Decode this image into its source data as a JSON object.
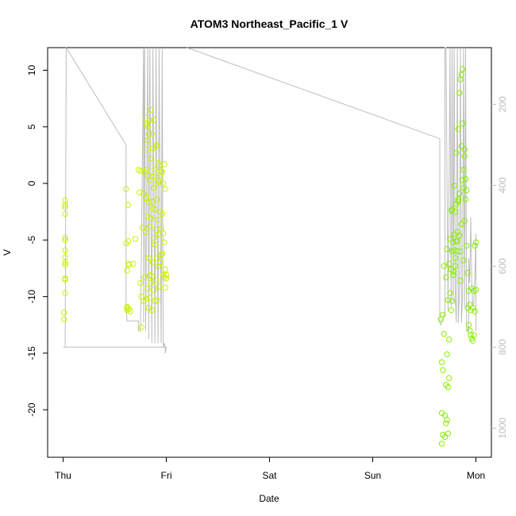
{
  "chart_data": {
    "type": "scatter",
    "title": "ATOM3 Northeast_Pacific_1 V",
    "xlabel": "Date",
    "ylabel": "V",
    "x_ticks": [
      "Thu",
      "Fri",
      "Sat",
      "Sun",
      "Mon"
    ],
    "y_ticks": [
      -20,
      -15,
      -10,
      -5,
      0,
      5,
      10
    ],
    "y_lim": [
      -24.2,
      12
    ],
    "right_axis_ticks": [
      200,
      400,
      600,
      800,
      1000
    ],
    "right_axis_lim": [
      60,
      1072
    ],
    "x_lim_days": [
      -0.15,
      4.15
    ],
    "grid": false,
    "colors": {
      "points_early": "#ccf000",
      "points_late": "#88ee00",
      "depth_line": "#bdbdbd",
      "axis": "#000000",
      "right_axis": "#bdbdbd"
    },
    "series": [
      {
        "type": "scatter",
        "x_days": [
          0.01,
          0.01,
          0.02,
          0.02,
          0.02,
          0.02,
          0.02,
          0.02,
          0.02,
          0.02,
          0.02,
          0.02,
          0.02,
          0.02,
          0.02,
          0.61,
          0.61,
          0.62,
          0.62,
          0.62,
          0.62,
          0.63,
          0.63,
          0.63,
          0.64,
          0.64,
          0.65,
          0.68,
          0.7,
          0.73,
          0.74,
          0.75,
          0.75,
          0.76,
          0.76,
          0.77,
          0.78,
          0.78,
          0.79,
          0.79,
          0.8,
          0.8,
          0.8,
          0.8,
          0.81,
          0.81,
          0.81,
          0.81,
          0.82,
          0.82,
          0.82,
          0.82,
          0.82,
          0.83,
          0.83,
          0.83,
          0.83,
          0.84,
          0.84,
          0.84,
          0.84,
          0.84,
          0.85,
          0.85,
          0.85,
          0.85,
          0.86,
          0.86,
          0.86,
          0.86,
          0.87,
          0.87,
          0.87,
          0.87,
          0.88,
          0.88,
          0.88,
          0.88,
          0.89,
          0.89,
          0.89,
          0.89,
          0.9,
          0.9,
          0.9,
          0.9,
          0.91,
          0.91,
          0.91,
          0.91,
          0.92,
          0.92,
          0.92,
          0.92,
          0.93,
          0.93,
          0.93,
          0.94,
          0.94,
          0.94,
          0.95,
          0.95,
          0.95,
          0.96,
          0.96,
          0.96,
          0.97,
          0.97,
          0.97,
          0.98,
          0.98,
          0.98,
          0.99,
          0.99,
          0.99,
          1.0,
          1.0
        ],
        "y": [
          -12.0,
          -11.4,
          -9.7,
          -8.5,
          -8.4,
          -7.2,
          -7.0,
          -6.5,
          -5.9,
          -5.0,
          -4.8,
          -2.7,
          -2.1,
          -1.9,
          -1.5,
          -0.5,
          -5.3,
          -7.7,
          -11.0,
          -11.2,
          -10.9,
          -7.1,
          -5.1,
          -1.9,
          -7.2,
          -11.1,
          -11.3,
          -7.1,
          -4.9,
          1.2,
          -0.8,
          1.1,
          -8.8,
          -10.0,
          -12.7,
          -3.9,
          -0.9,
          -10.4,
          1.0,
          -8.3,
          -4.3,
          -1.3,
          3.0,
          5.8,
          -10.2,
          -1.2,
          1.2,
          5.2,
          -9.3,
          -2.9,
          0.7,
          3.8,
          5.0,
          -11.0,
          -6.6,
          -1.7,
          4.4,
          -10.1,
          -8.1,
          -3.8,
          0.3,
          5.6,
          -8.8,
          -3.1,
          2.2,
          6.5,
          -11.2,
          -8.2,
          -1.6,
          4.4,
          -7.0,
          -2.2,
          0.6,
          3.1,
          -9.4,
          -4.8,
          -0.4,
          5.6,
          -10.4,
          -5.4,
          -2.3,
          1.2,
          -8.5,
          -4.1,
          0.0,
          3.3,
          -10.3,
          -6.6,
          -1.4,
          3.4,
          -7.3,
          -3.2,
          0.2,
          1.8,
          -9.1,
          -4.5,
          1.6,
          -7.0,
          -2.5,
          0.7,
          -6.3,
          -4.0,
          1.1,
          -6.2,
          -2.7,
          1.0,
          -8.1,
          -4.4,
          0.0,
          -8.3,
          -5.2,
          1.7,
          -9.2,
          -7.6,
          -0.5,
          -8.4,
          -8.1
        ]
      },
      {
        "type": "scatter",
        "x_days": [
          3.66,
          3.67,
          3.67,
          3.67,
          3.68,
          3.68,
          3.68,
          3.69,
          3.69,
          3.7,
          3.7,
          3.71,
          3.71,
          3.71,
          3.72,
          3.72,
          3.72,
          3.73,
          3.73,
          3.73,
          3.74,
          3.74,
          3.74,
          3.75,
          3.75,
          3.76,
          3.76,
          3.76,
          3.77,
          3.77,
          3.77,
          3.78,
          3.78,
          3.78,
          3.79,
          3.79,
          3.79,
          3.8,
          3.8,
          3.8,
          3.81,
          3.81,
          3.81,
          3.82,
          3.82,
          3.82,
          3.83,
          3.83,
          3.83,
          3.84,
          3.84,
          3.84,
          3.85,
          3.85,
          3.85,
          3.86,
          3.86,
          3.86,
          3.87,
          3.87,
          3.87,
          3.88,
          3.88,
          3.88,
          3.89,
          3.89,
          3.89,
          3.9,
          3.9,
          3.91,
          3.91,
          3.92,
          3.92,
          3.93,
          3.93,
          3.94,
          3.94,
          3.95,
          3.95,
          3.96,
          3.96,
          3.97,
          3.97,
          3.98,
          3.98,
          3.99,
          3.99,
          4.0,
          4.0
        ],
        "y": [
          -12.0,
          -15.8,
          -20.3,
          -23.0,
          -11.6,
          -16.5,
          -22.2,
          -7.3,
          -13.3,
          -20.5,
          -22.4,
          -8.3,
          -17.8,
          -21.2,
          -5.8,
          -15.1,
          -20.9,
          -10.3,
          -18.0,
          -22.1,
          -7.1,
          -13.8,
          -17.2,
          -4.9,
          -9.7,
          -7.6,
          -11.2,
          -2.4,
          -6.0,
          -10.4,
          -2.3,
          -5.2,
          -8.1,
          -7.8,
          -5.9,
          -0.2,
          -4.5,
          -7.3,
          -2.5,
          -6.6,
          -5.1,
          -1.8,
          2.7,
          -6.0,
          -5.1,
          -4.3,
          -1.6,
          -1.4,
          4.8,
          -4.6,
          -0.9,
          8.0,
          -8.6,
          -6.0,
          9.2,
          -3.6,
          3.3,
          9.6,
          0.3,
          5.3,
          10.1,
          -0.4,
          1.2,
          -6.8,
          -3.3,
          2.4,
          3.0,
          0.4,
          -1.4,
          -5.5,
          -0.6,
          -11.0,
          -7.9,
          -12.5,
          -9.5,
          -13.0,
          -10.7,
          -13.4,
          -11.2,
          -13.7,
          -9.3,
          -13.9,
          -11.0,
          -13.4,
          -9.5,
          -11.3,
          -5.5,
          -9.4,
          -5.2
        ]
      }
    ]
  }
}
